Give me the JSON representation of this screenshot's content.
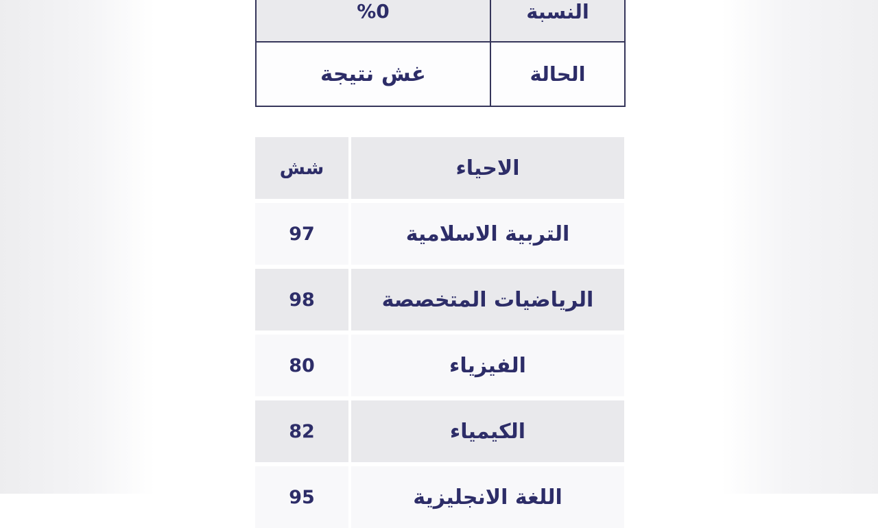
{
  "summary": {
    "rows": [
      {
        "label": "النسبة",
        "value": "%0"
      },
      {
        "label": "الحالة",
        "value": "غش نتيجة"
      }
    ]
  },
  "grades": {
    "rows": [
      {
        "score": "شش",
        "subject": "الاحياء"
      },
      {
        "score": "97",
        "subject": "التربية الاسلامية"
      },
      {
        "score": "98",
        "subject": "الرياضيات المتخصصة"
      },
      {
        "score": "80",
        "subject": "الفيزياء"
      },
      {
        "score": "82",
        "subject": "الكيمياء"
      },
      {
        "score": "95",
        "subject": "اللغة الانجليزية"
      }
    ]
  },
  "colors": {
    "text": "#2d2d68",
    "table_border": "#35355a",
    "row_gray": "#e9e9ec",
    "row_light": "#f8f8fa",
    "header_cell": "#eaeaed"
  }
}
